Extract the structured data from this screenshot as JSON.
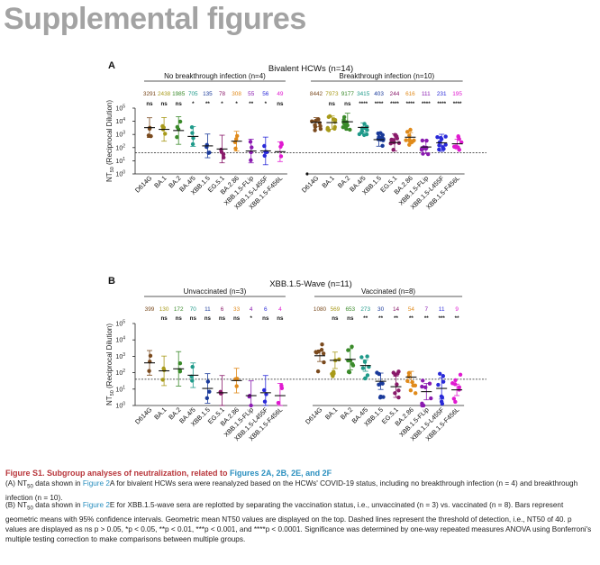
{
  "page_title": "Supplemental figures",
  "caption": {
    "title_prefix": "Figure S1.  Subgroup analyses of neutralization, related to ",
    "title_links": "Figures 2A, 2B, 2E, and 2F",
    "a_prefix": "(A) NT",
    "a_sub": "50",
    "a_mid": " data shown in ",
    "a_link": "Figure 2",
    "a_rest": "A for bivalent HCWs sera were reanalyzed based on the HCWs' COVID-19 status, including no breakthrough infection (n = 4) and breakthrough infection (n = 10).",
    "b_prefix": "(B) NT",
    "b_sub": "50",
    "b_mid": " data shown in ",
    "b_link": "Figure 2",
    "b_rest": "E for XBB.1.5-wave sera are replotted by separating the vaccination status, i.e., unvaccinated (n = 3) vs. vaccinated (n = 8). Bars represent geometric means with 95% confidence intervals. Geometric mean NT50 values are displayed on the top. Dashed lines represent the threshold of detection, i.e., NT50 of 40. p values are displayed as ns p > 0.05, *p < 0.05, **p < 0.01, ***p < 0.001, and ****p < 0.0001. Significance was determined by one-way repeated measures ANOVA using Bonferroni's multiple testing correction to make comparisons between multiple groups."
  },
  "variant_colors": [
    "#7a4a1e",
    "#a89a1a",
    "#3a8a2a",
    "#1f9a8a",
    "#1a3a9a",
    "#8a1a6a",
    "#e08a1a",
    "#8a1ab0",
    "#2a2ad8",
    "#e01ad0"
  ],
  "chart_data": [
    {
      "type": "scatter",
      "panel_label": "A",
      "title": "Bivalent HCWs (n=14)",
      "ylabel": "NT50 (Reciprocal Dilution)",
      "yscale": "log",
      "ylim": [
        1,
        100000
      ],
      "ytick_labels": [
        "10^0",
        "10^1",
        "10^2",
        "10^3",
        "10^4",
        "10^5"
      ],
      "threshold": 40,
      "categories": [
        "D614G",
        "BA.1",
        "BA.2",
        "BA.4/5",
        "XBB.1.5",
        "EG.5.1",
        "BA.2.86",
        "XBB.1.5-FLip",
        "XBB.1.5-L455F",
        "XBB.1.5-F456L"
      ],
      "groups": [
        {
          "name": "No breakthrough infection (n=4)",
          "geomeans": [
            3291,
            2438,
            1985,
            705,
            135,
            78,
            308,
            55,
            56,
            49
          ],
          "significance": [
            "ns",
            "ns",
            "ns",
            "*",
            "**",
            "*",
            "*",
            "**",
            "*",
            "ns"
          ]
        },
        {
          "name": "Breakthrough infection (n=10)",
          "geomeans": [
            8442,
            7973,
            9177,
            3415,
            403,
            244,
            616,
            111,
            231,
            195
          ],
          "significance": [
            "",
            "ns",
            "ns",
            "****",
            "****",
            "****",
            "****",
            "****",
            "****",
            "****"
          ]
        }
      ]
    },
    {
      "type": "scatter",
      "panel_label": "B",
      "title": "XBB.1.5-Wave (n=11)",
      "ylabel": "NT50 (Reciprocal Dilution)",
      "yscale": "log",
      "ylim": [
        1,
        100000
      ],
      "ytick_labels": [
        "10^0",
        "10^1",
        "10^2",
        "10^3",
        "10^4",
        "10^5"
      ],
      "threshold": 40,
      "categories": [
        "D614G",
        "BA.1",
        "BA.2",
        "BA.4/5",
        "XBB.1.5",
        "EG.5.1",
        "BA.2.86",
        "XBB.1.5-FLip",
        "XBB.1.5-L455F",
        "XBB.1.5-F456L"
      ],
      "groups": [
        {
          "name": "Unvaccinated (n=3)",
          "geomeans": [
            399,
            130,
            172,
            70,
            11,
            6,
            33,
            4,
            6,
            4
          ],
          "significance": [
            "",
            "ns",
            "ns",
            "ns",
            "ns",
            "ns",
            "ns",
            "*",
            "ns",
            "ns"
          ]
        },
        {
          "name": "Vaccinated (n=8)",
          "geomeans": [
            1080,
            569,
            653,
            273,
            30,
            14,
            54,
            7,
            11,
            9
          ],
          "significance": [
            "",
            "ns",
            "ns",
            "**",
            "**",
            "**",
            "**",
            "**",
            "***",
            "**"
          ]
        }
      ]
    }
  ]
}
